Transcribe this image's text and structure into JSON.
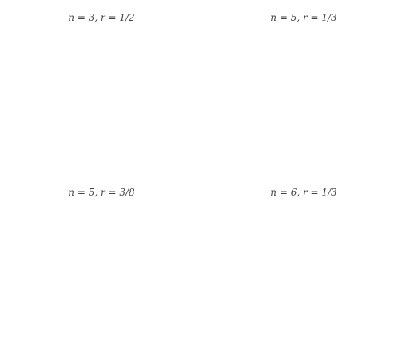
{
  "figure": {
    "ink_color": "#1a1a1a",
    "background": "#ffffff",
    "panels": [
      {
        "caption": "n = 3, r = 1/2",
        "n": 3,
        "r": 0.5,
        "depth": 7
      },
      {
        "caption": "n = 5, r = 1/3",
        "n": 5,
        "r": 0.3333,
        "depth": 3
      },
      {
        "caption": "n = 5, r = 3/8",
        "n": 5,
        "r": 0.375,
        "depth": 4
      },
      {
        "caption": "n = 6, r = 1/3",
        "n": 6,
        "r": 0.3333,
        "depth": 4
      }
    ]
  }
}
